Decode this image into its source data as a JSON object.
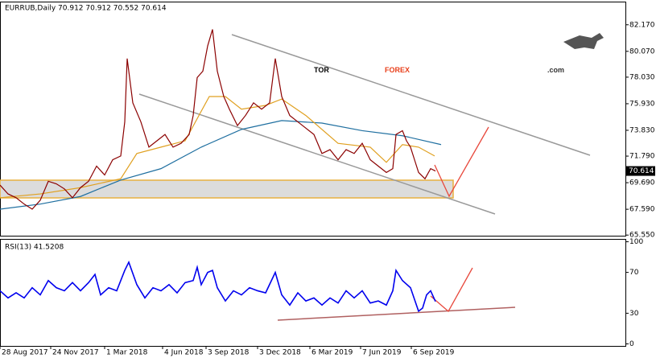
{
  "logo": [
    "TOR",
    "FOREX",
    ".com"
  ],
  "chart_data": [
    {
      "type": "line",
      "title": "EURRUB,Daily  70.912 70.912 70.552 70.614",
      "price_label": "70.614",
      "xlim": [
        0,
        777
      ],
      "ylim": [
        65.5,
        84.0
      ],
      "yticks": [
        {
          "value": 82.17,
          "label": "82.170"
        },
        {
          "value": 80.07,
          "label": "80.070"
        },
        {
          "value": 78.03,
          "label": "78.030"
        },
        {
          "value": 75.93,
          "label": "75.930"
        },
        {
          "value": 73.83,
          "label": "73.830"
        },
        {
          "value": 71.79,
          "label": "71.790"
        },
        {
          "value": 69.69,
          "label": "69.690"
        },
        {
          "value": 67.59,
          "label": "67.590"
        },
        {
          "value": 65.55,
          "label": "65.550"
        }
      ],
      "series": [
        {
          "color": "#1f6fa0",
          "x": [
            0,
            50,
            100,
            150,
            200,
            250,
            300,
            350,
            400,
            450,
            500,
            548
          ],
          "values": [
            67.6,
            68.0,
            68.6,
            69.9,
            70.8,
            72.5,
            73.9,
            74.6,
            74.4,
            73.8,
            73.4,
            72.7
          ]
        },
        {
          "color": "#e0a020",
          "x": [
            0,
            50,
            100,
            150,
            170,
            200,
            230,
            260,
            280,
            300,
            330,
            350,
            380,
            420,
            460,
            480,
            500,
            520,
            540
          ],
          "values": [
            68.5,
            68.8,
            69.3,
            70.0,
            72.0,
            72.5,
            73.0,
            76.5,
            76.5,
            75.5,
            75.8,
            76.3,
            75.0,
            72.8,
            72.5,
            71.3,
            72.7,
            72.5,
            71.8
          ]
        },
        {
          "color": "#8b0000",
          "x": [
            0,
            10,
            20,
            30,
            40,
            50,
            60,
            70,
            80,
            90,
            100,
            110,
            120,
            130,
            140,
            150,
            155,
            158,
            165,
            175,
            185,
            195,
            205,
            215,
            225,
            235,
            240,
            245,
            252,
            258,
            264,
            270,
            278,
            285,
            295,
            305,
            315,
            325,
            335,
            342,
            350,
            360,
            370,
            380,
            390,
            400,
            410,
            420,
            430,
            440,
            450,
            460,
            470,
            480,
            488,
            492,
            500,
            505,
            510,
            515,
            520,
            528,
            535,
            541
          ],
          "values": [
            69.5,
            68.8,
            68.5,
            68.0,
            67.6,
            68.3,
            69.8,
            69.6,
            69.2,
            68.5,
            69.3,
            69.8,
            71.0,
            70.3,
            71.5,
            71.8,
            74.5,
            79.5,
            76.0,
            74.5,
            72.5,
            73.0,
            73.5,
            72.5,
            72.8,
            73.5,
            75.0,
            78.0,
            78.5,
            80.5,
            81.8,
            78.5,
            76.5,
            75.5,
            74.2,
            75.0,
            76.0,
            75.5,
            76.0,
            79.5,
            76.5,
            75.0,
            74.5,
            74.0,
            73.5,
            72.0,
            72.3,
            71.5,
            72.3,
            72.0,
            72.8,
            71.5,
            71.0,
            70.5,
            70.8,
            73.5,
            73.8,
            73.0,
            72.5,
            71.5,
            70.5,
            70.0,
            70.8,
            70.614
          ]
        }
      ]
    },
    {
      "type": "line",
      "title": "RSI(13) 41.5208",
      "xlim": [
        0,
        777
      ],
      "ylim": [
        -2,
        102
      ],
      "yticks": [
        100,
        70,
        30,
        0
      ],
      "xticks": [
        {
          "value": 0,
          "label": "28 Aug 2017"
        },
        {
          "value": 63,
          "label": "24 Nov 2017"
        },
        {
          "value": 130,
          "label": "1 Mar 2018"
        },
        {
          "value": 202,
          "label": "4 Jun 2018"
        },
        {
          "value": 256,
          "label": "3 Sep 2018"
        },
        {
          "value": 320,
          "label": "3 Dec 2018"
        },
        {
          "value": 385,
          "label": "6 Mar 2019"
        },
        {
          "value": 448,
          "label": "7 Jun 2019"
        },
        {
          "value": 511,
          "label": "6 Sep 2019"
        }
      ],
      "series": [
        {
          "color": "#0000ee",
          "x": [
            0,
            10,
            20,
            30,
            40,
            50,
            60,
            70,
            80,
            90,
            100,
            110,
            118,
            125,
            135,
            145,
            155,
            160,
            170,
            180,
            190,
            200,
            210,
            220,
            230,
            240,
            245,
            250,
            258,
            264,
            270,
            280,
            290,
            300,
            310,
            320,
            330,
            342,
            350,
            360,
            370,
            380,
            390,
            400,
            410,
            420,
            430,
            440,
            450,
            460,
            470,
            480,
            488,
            492,
            500,
            510,
            520,
            525,
            530,
            535,
            541
          ],
          "values": [
            52,
            45,
            50,
            45,
            55,
            48,
            62,
            55,
            52,
            60,
            52,
            60,
            68,
            48,
            55,
            52,
            72,
            80,
            58,
            45,
            55,
            52,
            58,
            50,
            60,
            62,
            75,
            58,
            70,
            72,
            55,
            42,
            52,
            48,
            55,
            52,
            50,
            70,
            48,
            38,
            50,
            42,
            45,
            38,
            45,
            40,
            52,
            45,
            52,
            40,
            42,
            38,
            52,
            72,
            62,
            55,
            32,
            35,
            48,
            52,
            41.52
          ]
        }
      ]
    }
  ]
}
